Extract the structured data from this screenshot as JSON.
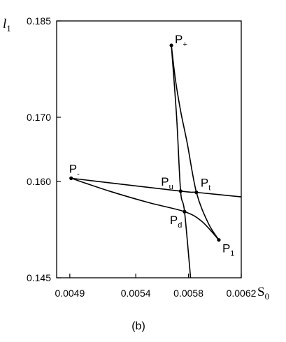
{
  "chart_data": {
    "type": "line",
    "xlabel": {
      "base": "S",
      "sub": "0"
    },
    "ylabel": {
      "base": "l",
      "sub": "1"
    },
    "xlim": [
      0.0048,
      0.0062
    ],
    "ylim": [
      0.145,
      0.185
    ],
    "x_ticks": [
      {
        "value": 0.0049,
        "label": "0.0049"
      },
      {
        "value": 0.0054,
        "label": "0.0054"
      },
      {
        "value": 0.0058,
        "label": "0.0058"
      },
      {
        "value": 0.0062,
        "label": "0.0062"
      }
    ],
    "y_ticks": [
      {
        "value": 0.145,
        "label": "0.145"
      },
      {
        "value": 0.16,
        "label": "0.160"
      },
      {
        "value": 0.17,
        "label": "0.170"
      },
      {
        "value": 0.185,
        "label": "0.185"
      }
    ],
    "caption": "(b)",
    "points": [
      {
        "id": "P+",
        "base": "P",
        "sub": "+",
        "x": 0.00567,
        "y": 0.1812,
        "dot": true
      },
      {
        "id": "P-",
        "base": "P",
        "sub": "-",
        "x": 0.00491,
        "y": 0.1605,
        "dot": true
      },
      {
        "id": "P1",
        "base": "P",
        "sub": "1",
        "x": 0.00603,
        "y": 0.1509,
        "dot": true
      },
      {
        "id": "Pu",
        "base": "P",
        "sub": "u",
        "x": 0.00574,
        "y": 0.1585,
        "dot": true
      },
      {
        "id": "Pt",
        "base": "P",
        "sub": "t",
        "x": 0.00586,
        "y": 0.1583,
        "dot": true
      },
      {
        "id": "Pd",
        "base": "P",
        "sub": "d",
        "x": 0.00577,
        "y": 0.1553,
        "dot": true
      }
    ],
    "curves": [
      {
        "points": [
          [
            0.00491,
            0.1605
          ],
          [
            0.00574,
            0.1585
          ],
          [
            0.00586,
            0.1583
          ],
          [
            0.0062,
            0.1576
          ]
        ]
      },
      {
        "points": [
          [
            0.00567,
            0.1812
          ],
          [
            0.00571,
            0.17
          ],
          [
            0.00574,
            0.1585
          ],
          [
            0.00577,
            0.1553
          ],
          [
            0.00582,
            0.144
          ]
        ]
      },
      {
        "points": [
          [
            0.00491,
            0.1605
          ],
          [
            0.0052,
            0.1585
          ],
          [
            0.0055,
            0.1567
          ],
          [
            0.00577,
            0.1553
          ],
          [
            0.0059,
            0.1538
          ],
          [
            0.00603,
            0.1509
          ]
        ]
      },
      {
        "points": [
          [
            0.00567,
            0.1812
          ],
          [
            0.0057,
            0.176
          ],
          [
            0.00574,
            0.171
          ],
          [
            0.00579,
            0.166
          ],
          [
            0.00586,
            0.1583
          ],
          [
            0.00595,
            0.1535
          ],
          [
            0.00603,
            0.1509
          ]
        ]
      }
    ]
  }
}
